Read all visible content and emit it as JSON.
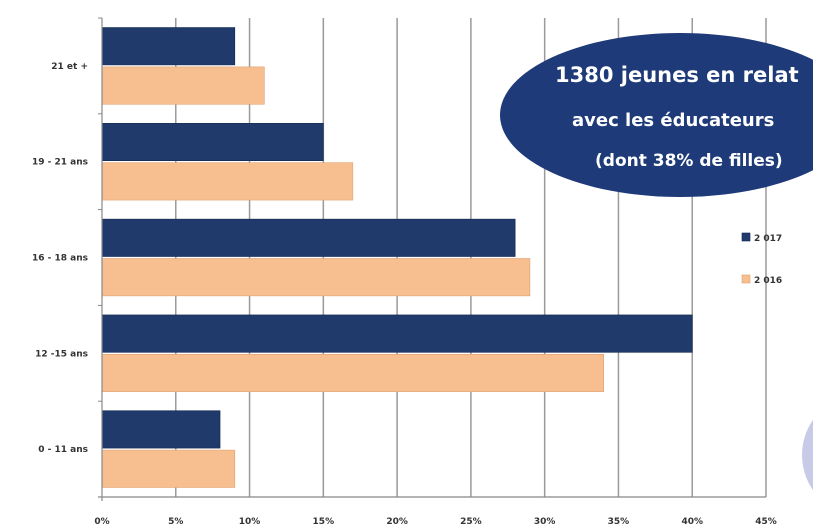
{
  "chart_data": {
    "type": "bar",
    "orientation": "horizontal",
    "categories": [
      "21 et +",
      "19 - 21 ans",
      "16 - 18 ans",
      "12 -15 ans",
      "0 - 11 ans"
    ],
    "series": [
      {
        "name": "2 017",
        "color": "#1f3a6b",
        "values": [
          9,
          15,
          28,
          40,
          8
        ]
      },
      {
        "name": "2 016",
        "color": "#f7bf8f",
        "values": [
          11,
          17,
          29,
          34,
          9
        ]
      }
    ],
    "xlim": [
      0,
      45
    ],
    "xticks": [
      0,
      5,
      10,
      15,
      20,
      25,
      30,
      35,
      40,
      45
    ],
    "xtick_labels": [
      "0%",
      "5%",
      "10%",
      "15%",
      "20%",
      "25%",
      "30%",
      "35%",
      "40%",
      "45%"
    ],
    "grid": true,
    "legend_position": "right"
  },
  "callout": {
    "lines": [
      "1380 jeunes en relat",
      "avec les éducateurs",
      "(dont 38% de filles)"
    ],
    "fill": "#1e3a78"
  },
  "colors": {
    "grid": "#9a9a9a",
    "axis": "#888888",
    "corner_shape": "#c8cbe8"
  }
}
